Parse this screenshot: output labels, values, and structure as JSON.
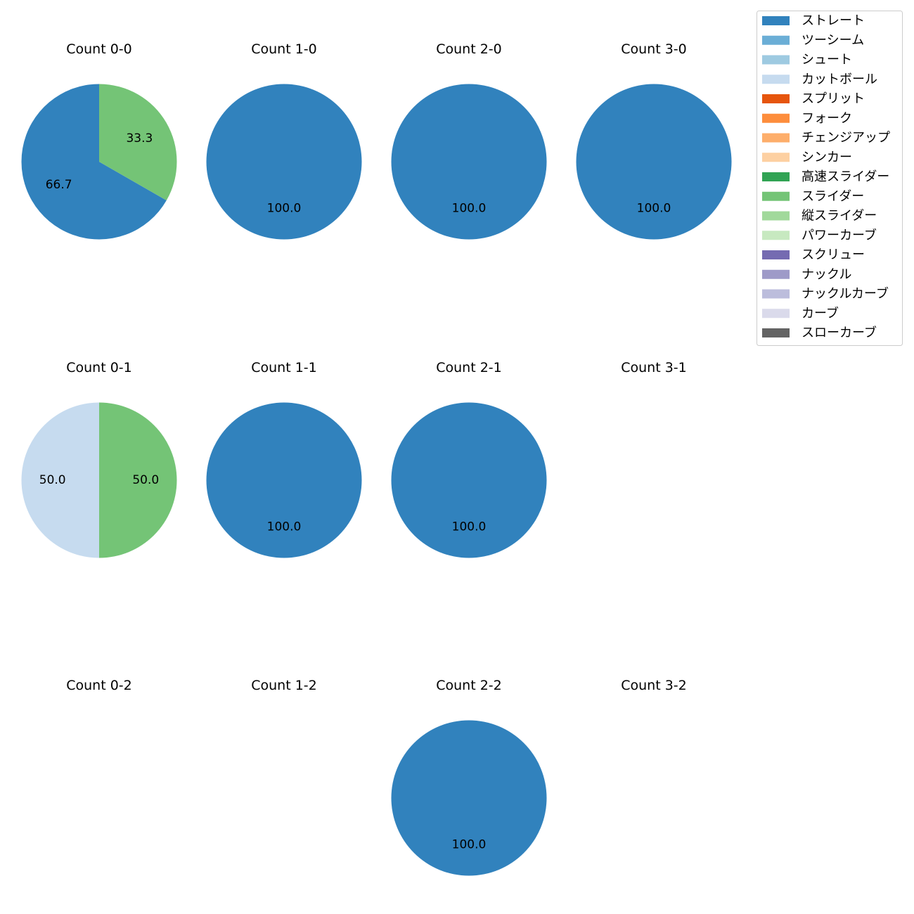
{
  "figure": {
    "background": "#ffffff"
  },
  "legend": {
    "placement": "top-right",
    "items": [
      {
        "label": "ストレート",
        "color": "#3182bd"
      },
      {
        "label": "ツーシーム",
        "color": "#6baed6"
      },
      {
        "label": "シュート",
        "color": "#9ecae1"
      },
      {
        "label": "カットボール",
        "color": "#c6dbef"
      },
      {
        "label": "スプリット",
        "color": "#e6550d"
      },
      {
        "label": "フォーク",
        "color": "#fd8d3c"
      },
      {
        "label": "チェンジアップ",
        "color": "#fdae6b"
      },
      {
        "label": "シンカー",
        "color": "#fdd0a2"
      },
      {
        "label": "高速スライダー",
        "color": "#31a354"
      },
      {
        "label": "スライダー",
        "color": "#74c476"
      },
      {
        "label": "縦スライダー",
        "color": "#a1d99b"
      },
      {
        "label": "パワーカーブ",
        "color": "#c7e9c0"
      },
      {
        "label": "スクリュー",
        "color": "#756bb1"
      },
      {
        "label": "ナックル",
        "color": "#9e9ac8"
      },
      {
        "label": "ナックルカーブ",
        "color": "#bcbddc"
      },
      {
        "label": "カーブ",
        "color": "#dadaeb"
      },
      {
        "label": "スローカーブ",
        "color": "#636363"
      }
    ]
  },
  "chart_data": [
    {
      "type": "pie",
      "title": "Count 0-0",
      "slices": [
        {
          "label": "ストレート",
          "value": 66.7
        },
        {
          "label": "スライダー",
          "value": 33.3
        }
      ]
    },
    {
      "type": "pie",
      "title": "Count 1-0",
      "slices": [
        {
          "label": "ストレート",
          "value": 100.0
        }
      ]
    },
    {
      "type": "pie",
      "title": "Count 2-0",
      "slices": [
        {
          "label": "ストレート",
          "value": 100.0
        }
      ]
    },
    {
      "type": "pie",
      "title": "Count 3-0",
      "slices": [
        {
          "label": "ストレート",
          "value": 100.0
        }
      ]
    },
    {
      "type": "pie",
      "title": "Count 0-1",
      "slices": [
        {
          "label": "カットボール",
          "value": 50.0
        },
        {
          "label": "スライダー",
          "value": 50.0
        }
      ]
    },
    {
      "type": "pie",
      "title": "Count 1-1",
      "slices": [
        {
          "label": "ストレート",
          "value": 100.0
        }
      ]
    },
    {
      "type": "pie",
      "title": "Count 2-1",
      "slices": [
        {
          "label": "ストレート",
          "value": 100.0
        }
      ]
    },
    {
      "type": "pie",
      "title": "Count 3-1",
      "slices": []
    },
    {
      "type": "pie",
      "title": "Count 0-2",
      "slices": []
    },
    {
      "type": "pie",
      "title": "Count 1-2",
      "slices": []
    },
    {
      "type": "pie",
      "title": "Count 2-2",
      "slices": [
        {
          "label": "ストレート",
          "value": 100.0
        }
      ]
    },
    {
      "type": "pie",
      "title": "Count 3-2",
      "slices": []
    }
  ]
}
